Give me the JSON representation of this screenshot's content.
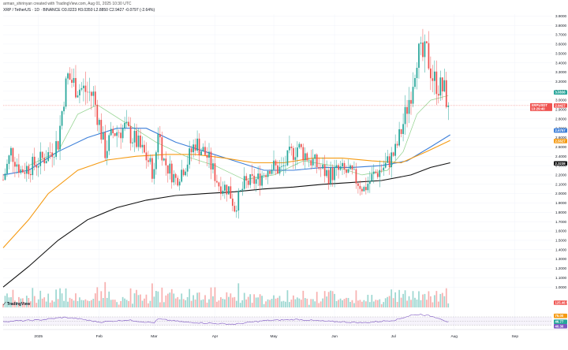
{
  "header": {
    "author": "arman_shirinyan created with TradingView.com, Aug 01, 2025 10:30 UTC",
    "symbol": "XRP / TetherUS · 1D · BINANCE",
    "ohlc": "O3.0223 H3.0350 L2.8850 C2.9427 -0.0797 (-2.64%)"
  },
  "logo": "TradingView",
  "colors": {
    "up": "#26a69a",
    "down": "#ef5350",
    "ma_green": "#8fd18b",
    "ma_blue": "#3d7fd9",
    "ma_orange": "#f59a12",
    "ma_black": "#111111",
    "rsi_line": "#7e57c2"
  },
  "chart_data": {
    "type": "candlestick",
    "symbol": "XRP / TetherUS",
    "timeframe": "1D",
    "exchange": "BINANCE",
    "price_axis": {
      "ticks": [
        1.0,
        1.1,
        1.2,
        1.3,
        1.4,
        1.5,
        1.6,
        1.7,
        1.8,
        1.9,
        2.0,
        2.1,
        2.2,
        2.3,
        2.4,
        2.5,
        2.6,
        2.7,
        2.8,
        2.9,
        3.0,
        3.1,
        3.2,
        3.3,
        3.4,
        3.5,
        3.6,
        3.7,
        3.8,
        3.9
      ],
      "ylim": [
        0.85,
        3.92
      ]
    },
    "time_axis": {
      "labels": [
        "2025",
        "Feb",
        "Mar",
        "Apr",
        "May",
        "Jun",
        "Jul",
        "Aug",
        "Sep"
      ],
      "label_days": [
        0,
        31,
        59,
        90,
        120,
        151,
        181,
        212,
        243
      ]
    },
    "price_path": [
      {
        "day": -18,
        "price": 2.15
      },
      {
        "day": -14,
        "price": 2.45
      },
      {
        "day": -9,
        "price": 2.25
      },
      {
        "day": -3,
        "price": 2.3
      },
      {
        "day": 4,
        "price": 2.4
      },
      {
        "day": 10,
        "price": 2.55
      },
      {
        "day": 13,
        "price": 3.05
      },
      {
        "day": 15,
        "price": 3.25
      },
      {
        "day": 19,
        "price": 3.15
      },
      {
        "day": 24,
        "price": 3.1
      },
      {
        "day": 28,
        "price": 3.05
      },
      {
        "day": 31,
        "price": 2.75
      },
      {
        "day": 34,
        "price": 2.45
      },
      {
        "day": 38,
        "price": 2.65
      },
      {
        "day": 44,
        "price": 2.7
      },
      {
        "day": 50,
        "price": 2.55
      },
      {
        "day": 56,
        "price": 2.35
      },
      {
        "day": 59,
        "price": 2.2
      },
      {
        "day": 61,
        "price": 2.7
      },
      {
        "day": 64,
        "price": 2.35
      },
      {
        "day": 70,
        "price": 2.15
      },
      {
        "day": 76,
        "price": 2.35
      },
      {
        "day": 80,
        "price": 2.55
      },
      {
        "day": 86,
        "price": 2.4
      },
      {
        "day": 92,
        "price": 2.1
      },
      {
        "day": 97,
        "price": 2.05
      },
      {
        "day": 100,
        "price": 1.85
      },
      {
        "day": 105,
        "price": 2.1
      },
      {
        "day": 112,
        "price": 2.15
      },
      {
        "day": 118,
        "price": 2.3
      },
      {
        "day": 124,
        "price": 2.25
      },
      {
        "day": 128,
        "price": 2.4
      },
      {
        "day": 132,
        "price": 2.5
      },
      {
        "day": 137,
        "price": 2.4
      },
      {
        "day": 142,
        "price": 2.3
      },
      {
        "day": 148,
        "price": 2.2
      },
      {
        "day": 154,
        "price": 2.25
      },
      {
        "day": 160,
        "price": 2.2
      },
      {
        "day": 166,
        "price": 2.05
      },
      {
        "day": 171,
        "price": 2.2
      },
      {
        "day": 177,
        "price": 2.3
      },
      {
        "day": 182,
        "price": 2.45
      },
      {
        "day": 186,
        "price": 2.75
      },
      {
        "day": 190,
        "price": 3.1
      },
      {
        "day": 193,
        "price": 3.5
      },
      {
        "day": 196,
        "price": 3.45
      },
      {
        "day": 198,
        "price": 3.5
      },
      {
        "day": 201,
        "price": 3.25
      },
      {
        "day": 204,
        "price": 3.15
      },
      {
        "day": 207,
        "price": 3.1
      },
      {
        "day": 209,
        "price": 2.94
      }
    ],
    "moving_averages": [
      {
        "color": "#8fd18b",
        "points": [
          [
            -5,
            2.3
          ],
          [
            10,
            2.45
          ],
          [
            20,
            2.85
          ],
          [
            30,
            2.95
          ],
          [
            45,
            2.75
          ],
          [
            60,
            2.55
          ],
          [
            75,
            2.4
          ],
          [
            90,
            2.3
          ],
          [
            105,
            2.15
          ],
          [
            120,
            2.2
          ],
          [
            135,
            2.35
          ],
          [
            150,
            2.3
          ],
          [
            165,
            2.2
          ],
          [
            178,
            2.25
          ],
          [
            186,
            2.45
          ],
          [
            193,
            2.85
          ],
          [
            200,
            3.0
          ],
          [
            209,
            3.05
          ]
        ]
      },
      {
        "color": "#3d7fd9",
        "points": [
          [
            -18,
            2.2
          ],
          [
            -5,
            2.25
          ],
          [
            10,
            2.45
          ],
          [
            25,
            2.6
          ],
          [
            40,
            2.7
          ],
          [
            55,
            2.7
          ],
          [
            70,
            2.55
          ],
          [
            85,
            2.45
          ],
          [
            100,
            2.35
          ],
          [
            115,
            2.25
          ],
          [
            130,
            2.25
          ],
          [
            145,
            2.28
          ],
          [
            160,
            2.28
          ],
          [
            175,
            2.3
          ],
          [
            188,
            2.35
          ],
          [
            200,
            2.5
          ],
          [
            210,
            2.63
          ]
        ]
      },
      {
        "color": "#f59a12",
        "points": [
          [
            -18,
            1.42
          ],
          [
            -5,
            1.72
          ],
          [
            5,
            2.0
          ],
          [
            20,
            2.25
          ],
          [
            35,
            2.36
          ],
          [
            50,
            2.4
          ],
          [
            65,
            2.42
          ],
          [
            80,
            2.42
          ],
          [
            95,
            2.38
          ],
          [
            110,
            2.33
          ],
          [
            125,
            2.33
          ],
          [
            140,
            2.38
          ],
          [
            155,
            2.38
          ],
          [
            170,
            2.35
          ],
          [
            185,
            2.33
          ],
          [
            198,
            2.45
          ],
          [
            210,
            2.57
          ]
        ]
      },
      {
        "color": "#111111",
        "points": [
          [
            -18,
            1.0
          ],
          [
            -5,
            1.22
          ],
          [
            10,
            1.5
          ],
          [
            25,
            1.72
          ],
          [
            40,
            1.85
          ],
          [
            55,
            1.93
          ],
          [
            70,
            1.98
          ],
          [
            85,
            2.0
          ],
          [
            100,
            2.02
          ],
          [
            115,
            2.05
          ],
          [
            130,
            2.07
          ],
          [
            145,
            2.1
          ],
          [
            160,
            2.12
          ],
          [
            175,
            2.14
          ],
          [
            190,
            2.2
          ],
          [
            200,
            2.28
          ],
          [
            210,
            2.33
          ]
        ]
      }
    ],
    "price_tags": [
      {
        "label": "3.0836",
        "value": 3.0836,
        "color": "#26a69a"
      },
      {
        "label": "2.9427",
        "value": 2.9427,
        "color": "#ef5350"
      },
      {
        "label": "2.6757",
        "value": 2.6757,
        "color": "#3d7fd9"
      },
      {
        "label": "2.5627",
        "value": 2.5627,
        "color": "#f59a12"
      },
      {
        "label": "2.3238",
        "value": 2.3238,
        "color": "#111111"
      }
    ],
    "symbol_tag": {
      "label": "XRPUSDT",
      "sub": "13:29:40",
      "value": 2.9427
    },
    "volume_tag": "125.46 M",
    "rsi": {
      "levels": [
        70,
        50,
        30
      ],
      "tags": [
        {
          "label": "75.00",
          "value": 75,
          "color": "#f59a12"
        },
        {
          "label": "46.77",
          "value": 46.77,
          "color": "#26a69a"
        },
        {
          "label": "40.30",
          "value": 40.3,
          "color": "#7e57c2"
        }
      ],
      "path": [
        [
          -18,
          48
        ],
        [
          0,
          55
        ],
        [
          13,
          68
        ],
        [
          20,
          62
        ],
        [
          31,
          45
        ],
        [
          45,
          55
        ],
        [
          59,
          42
        ],
        [
          61,
          60
        ],
        [
          75,
          45
        ],
        [
          92,
          38
        ],
        [
          100,
          35
        ],
        [
          115,
          52
        ],
        [
          132,
          58
        ],
        [
          145,
          50
        ],
        [
          166,
          42
        ],
        [
          182,
          55
        ],
        [
          190,
          78
        ],
        [
          195,
          82
        ],
        [
          201,
          72
        ],
        [
          205,
          62
        ],
        [
          209,
          44
        ]
      ]
    }
  }
}
